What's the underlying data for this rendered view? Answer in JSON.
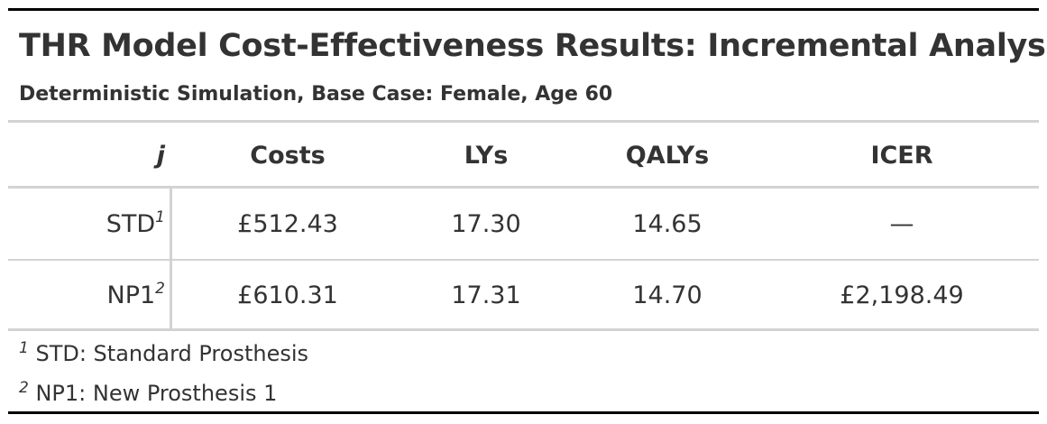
{
  "table": {
    "title": "THR Model Cost-Effectiveness Results: Incremental Analysis",
    "subtitle": "Deterministic Simulation, Base Case: Female, Age 60",
    "columns": {
      "stub": "j",
      "costs": "Costs",
      "lys": "LYs",
      "qalys": "QALYs",
      "icer": "ICER"
    },
    "rows": [
      {
        "label": "STD",
        "marker": "1",
        "costs": "£512.43",
        "lys": "17.30",
        "qalys": "14.65",
        "icer": "—"
      },
      {
        "label": "NP1",
        "marker": "2",
        "costs": "£610.31",
        "lys": "17.31",
        "qalys": "14.70",
        "icer": "£2,198.49"
      }
    ],
    "footnotes": [
      {
        "marker": "1",
        "text": "STD: Standard Prosthesis"
      },
      {
        "marker": "2",
        "text": "NP1: New Prosthesis 1"
      }
    ],
    "colors": {
      "text": "#333333",
      "outer_rule": "#000000",
      "inner_rule": "#d3d3d3"
    }
  }
}
